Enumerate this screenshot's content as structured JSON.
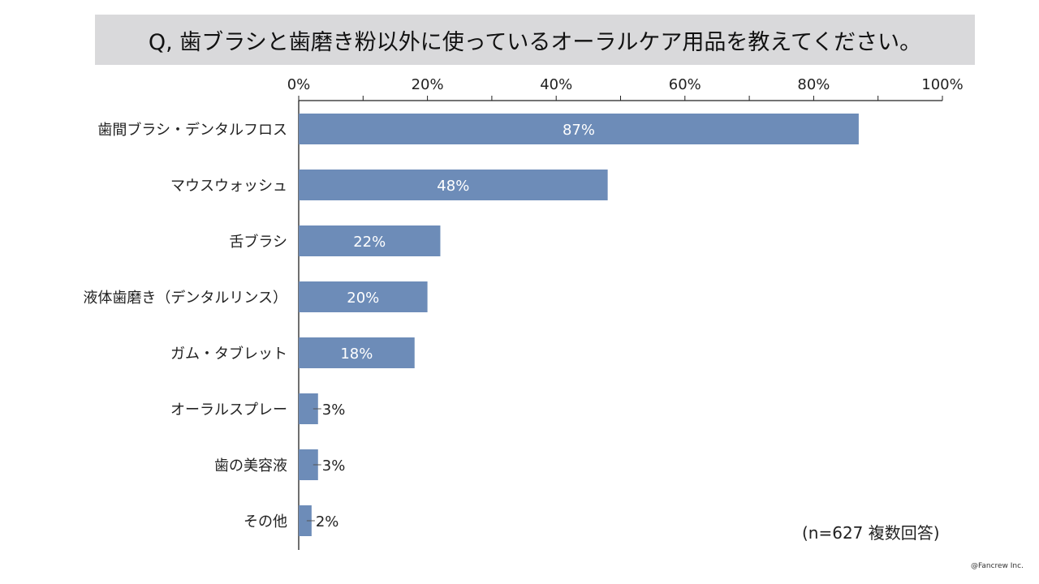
{
  "title": "Q, 歯ブラシと歯磨き粉以外に使っているオーラルケア用品を教えてください。",
  "note": "(n=627 複数回答)",
  "copyright": "@Fancrew Inc.",
  "colors": {
    "bar": "#6d8cb8",
    "label_inside": "#ffffff"
  },
  "chart_data": {
    "type": "bar",
    "orientation": "horizontal",
    "categories": [
      "歯間ブラシ・デンタルフロス",
      "マウスウォッシュ",
      "舌ブラシ",
      "液体歯磨き（デンタルリンス）",
      "ガム・タブレット",
      "オーラルスプレー",
      "歯の美容液",
      "その他"
    ],
    "values": [
      87,
      48,
      22,
      20,
      18,
      3,
      3,
      2
    ],
    "labels": [
      "87%",
      "48%",
      "22%",
      "20%",
      "18%",
      "3%",
      "3%",
      "2%"
    ],
    "xlim": [
      0,
      100
    ],
    "ticks": [
      "0%",
      "20%",
      "40%",
      "60%",
      "80%",
      "100%"
    ],
    "grid": false
  }
}
